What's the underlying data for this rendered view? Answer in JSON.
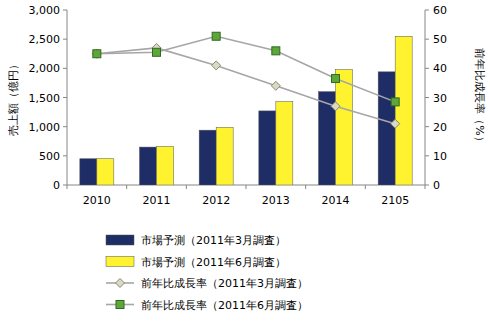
{
  "chart_data": {
    "type": "bar",
    "categories": [
      "2010",
      "2011",
      "2012",
      "2013",
      "2014",
      "2105"
    ],
    "y_label": "売上額（億円）",
    "y2_label": "前年比成長率（%）",
    "ylim": [
      0,
      3000
    ],
    "yticks": [
      0,
      500,
      {
        "value": 1000,
        "label": "1,000"
      },
      {
        "value": 1500,
        "label": "1,500"
      },
      {
        "value": 2000,
        "label": "2,000"
      },
      {
        "value": 2500,
        "label": "2,500"
      },
      {
        "value": 3000,
        "label": "3,000"
      }
    ],
    "y2lim": [
      0,
      60
    ],
    "y2ticks": [
      0,
      10,
      20,
      30,
      40,
      50,
      60
    ],
    "grid": false,
    "legend": "bottom",
    "series": [
      {
        "name": "市場予測（2011年3月調査）",
        "type": "bar",
        "color": "#1f2d66",
        "values": [
          450,
          650,
          940,
          1270,
          1600,
          1940
        ]
      },
      {
        "name": "市場予測（2011年6月調査）",
        "type": "bar",
        "color": "#fff22e",
        "values": [
          450,
          660,
          990,
          1430,
          1980,
          2550
        ]
      },
      {
        "name": "前年比成長率（2011年3月調査）",
        "type": "line",
        "axis": "y2",
        "color": "#d9d9c6",
        "marker": "diamond",
        "values": [
          45,
          47,
          41,
          34,
          27,
          21
        ]
      },
      {
        "name": "前年比成長率（2011年6月調査）",
        "type": "line",
        "axis": "y2",
        "color": "#5fa63a",
        "marker": "square",
        "values": [
          45,
          45.5,
          51,
          46,
          36.5,
          28.5
        ]
      }
    ]
  }
}
